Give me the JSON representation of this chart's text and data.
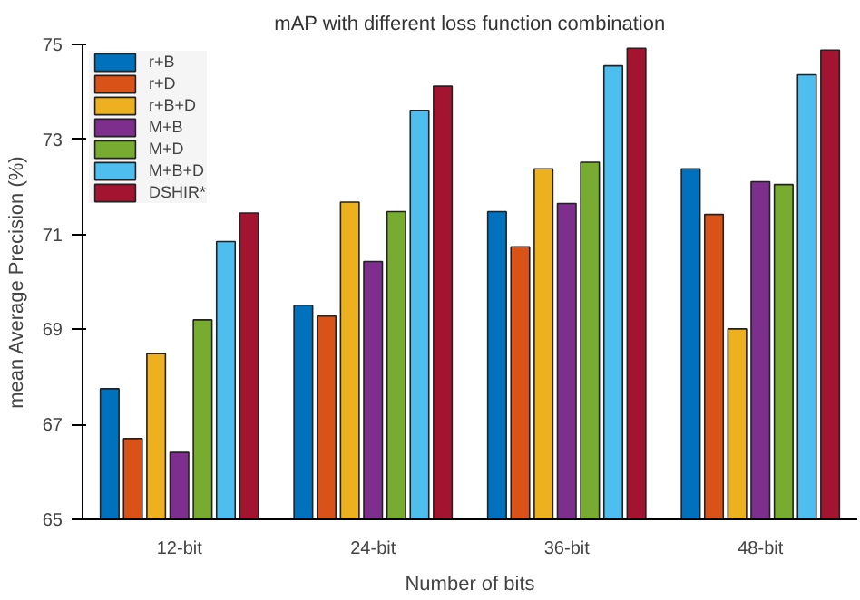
{
  "chart_data": {
    "type": "bar",
    "title": "mAP with different loss function combination",
    "xlabel": "Number of bits",
    "ylabel": "mean Average Precision (%)",
    "categories": [
      "12-bit",
      "24-bit",
      "36-bit",
      "48-bit"
    ],
    "series": [
      {
        "name": "r+B",
        "color": "#0072bd",
        "values": [
          67.75,
          69.51,
          71.48,
          72.38
        ]
      },
      {
        "name": "r+D",
        "color": "#d95319",
        "values": [
          66.7,
          69.28,
          70.74,
          71.42
        ]
      },
      {
        "name": "r+B+D",
        "color": "#edb120",
        "values": [
          68.49,
          71.68,
          72.38,
          69.01
        ]
      },
      {
        "name": "M+B",
        "color": "#7e2f8e",
        "values": [
          66.41,
          70.43,
          71.65,
          72.11
        ]
      },
      {
        "name": "M+D",
        "color": "#77ac30",
        "values": [
          69.2,
          71.48,
          72.52,
          72.05
        ]
      },
      {
        "name": "M+B+D",
        "color": "#4dbeee",
        "values": [
          70.85,
          73.61,
          74.55,
          74.36
        ]
      },
      {
        "name": "DSHIR*",
        "color": "#a2142f",
        "values": [
          71.45,
          74.12,
          74.92,
          74.88
        ]
      }
    ],
    "ylim": [
      65,
      75
    ],
    "yticks": [
      65,
      67,
      69,
      71,
      73,
      75
    ],
    "grid": false,
    "legend": "top left"
  }
}
